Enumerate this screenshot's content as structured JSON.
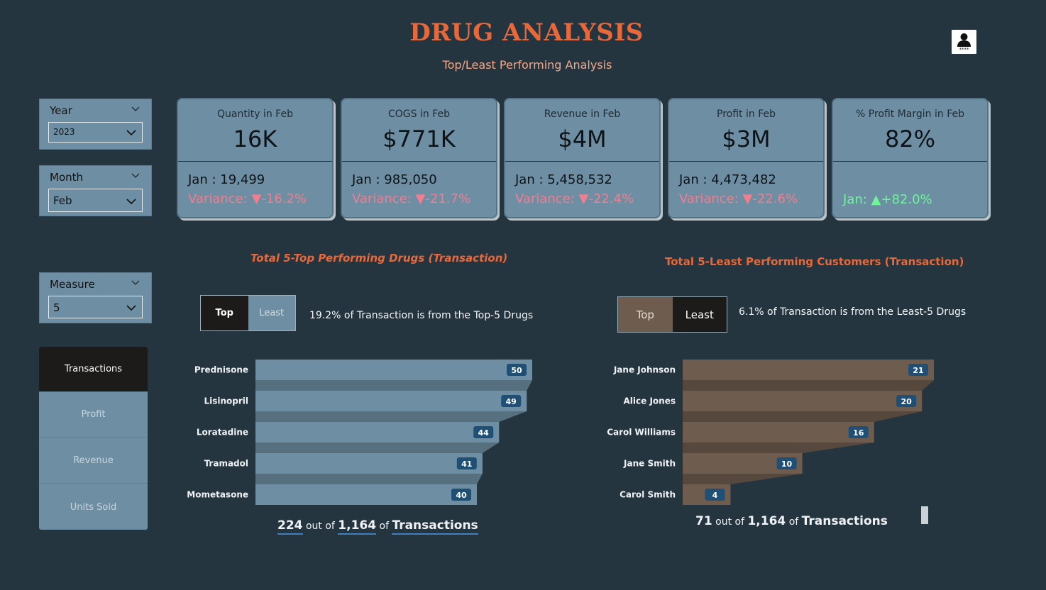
{
  "header": {
    "title": "DRUG ANALYSIS",
    "subtitle": "Top/Least Performing Analysis"
  },
  "icons": {
    "user": "user-icon",
    "chevron": "chevron-down-icon",
    "triangle_down": "triangle-down-icon",
    "triangle_up": "triangle-up-icon"
  },
  "slicers": {
    "year": {
      "label": "Year",
      "value": "2023"
    },
    "month": {
      "label": "Month",
      "value": "Feb"
    },
    "measure": {
      "label": "Measure",
      "value": "5"
    }
  },
  "kpis": [
    {
      "title": "Quantity in Feb",
      "value": "16K",
      "prev": "Jan : 19,499",
      "var_label": "Variance: ",
      "var_arrow": "▼",
      "var_value": "-16.2%"
    },
    {
      "title": "COGS in Feb",
      "value": "$771K",
      "prev": "Jan : 985,050",
      "var_label": "Variance: ",
      "var_arrow": "▼",
      "var_value": "-21.7%"
    },
    {
      "title": "Revenue in Feb",
      "value": "$4M",
      "prev": "Jan : 5,458,532",
      "var_label": "Variance: ",
      "var_arrow": "▼",
      "var_value": "-22.4%"
    },
    {
      "title": "Profit in Feb",
      "value": "$3M",
      "prev": "Jan : 4,473,482",
      "var_label": "Variance: ",
      "var_arrow": "▼",
      "var_value": "-22.6%"
    },
    {
      "title": "% Profit Margin in Feb",
      "value": "82%",
      "prev": "",
      "var_label": "Jan: ",
      "var_arrow": "▲",
      "var_value": "+82.0%"
    }
  ],
  "nav": [
    "Transactions",
    "Profit",
    "Revenue",
    "Units Sold"
  ],
  "left_panel": {
    "title": "Total 5-Top Performing Drugs (Transaction)",
    "toggle": [
      "Top",
      "Least"
    ],
    "note": "19.2% of Transaction is from the Top-5 Drugs",
    "total": {
      "value": "224",
      "out_of": "out of",
      "grand": "1,164",
      "of": "of",
      "measure": "Transactions"
    }
  },
  "right_panel": {
    "title": "Total 5-Least Performing Customers (Transaction)",
    "toggle": [
      "Top",
      "Least"
    ],
    "note": "6.1% of Transaction is from the Least-5 Drugs",
    "total": {
      "value": "71",
      "out_of": "out of",
      "grand": "1,164",
      "of": "of",
      "measure": "Transactions"
    }
  },
  "colors": {
    "bar_left": "#6e8fa3",
    "bar_right": "#6e5d4e",
    "accent": "#e8683a",
    "label_bg": "#1f4f75"
  },
  "chart_data": [
    {
      "type": "bar",
      "orientation": "horizontal",
      "title": "Total 5-Top Performing Drugs (Transaction)",
      "categories": [
        "Prednisone",
        "Lisinopril",
        "Loratadine",
        "Tramadol",
        "Mometasone"
      ],
      "values": [
        50,
        49,
        44,
        41,
        40
      ],
      "xlim": [
        0,
        50
      ]
    },
    {
      "type": "bar",
      "orientation": "horizontal",
      "title": "Total 5-Least Performing Customers (Transaction)",
      "categories": [
        "Jane Johnson",
        "Alice Jones",
        "Carol Williams",
        "Jane Smith",
        "Carol Smith"
      ],
      "values": [
        21,
        20,
        16,
        10,
        4
      ],
      "xlim": [
        0,
        21
      ]
    }
  ]
}
